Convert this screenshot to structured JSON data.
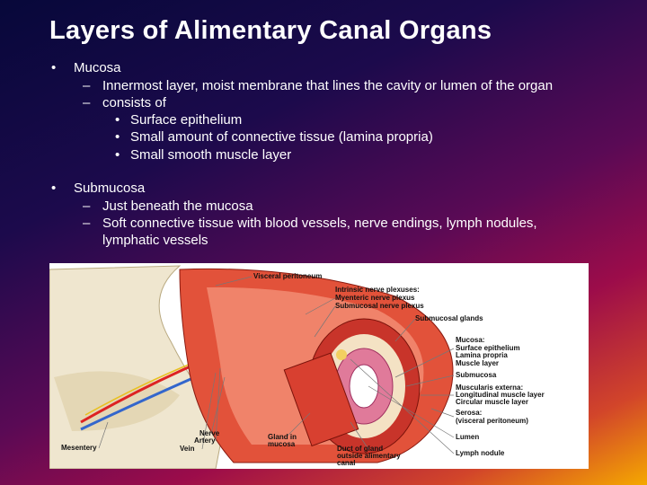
{
  "title": "Layers of Alimentary Canal Organs",
  "bullets": [
    {
      "text": "Mucosa",
      "items": [
        {
          "text": "Innermost layer, moist membrane that lines the cavity or lumen of the organ",
          "items": []
        },
        {
          "text": "consists of",
          "items": [
            "Surface epithelium",
            "Small amount of connective tissue (lamina propria)",
            "Small smooth muscle layer"
          ]
        }
      ]
    },
    {
      "text": "Submucosa",
      "items": [
        {
          "text": "Just beneath the mucosa",
          "items": []
        },
        {
          "text": "Soft connective tissue with blood vessels, nerve endings, lymph nodules, lymphatic vessels",
          "items": []
        }
      ]
    }
  ],
  "figure": {
    "labels": [
      "Visceral peritoneum",
      "Intrinsic nerve plexuses:",
      "Myenteric nerve plexus",
      "Submucosal nerve plexus",
      "Submucosal glands",
      "Mucosa:",
      "Surface epithelium",
      "Lamina propria",
      "Muscle layer",
      "Submucosa",
      "Muscularis externa:",
      "Longitudinal muscle layer",
      "Circular muscle layer",
      "Serosa:",
      "(visceral peritoneum)",
      "Lumen",
      "Lymph nodule",
      "Mesentery",
      "Nerve",
      "Artery",
      "Vein",
      "Gland in",
      "mucosa",
      "Duct of gland",
      "outside alimentary",
      "canal"
    ]
  }
}
